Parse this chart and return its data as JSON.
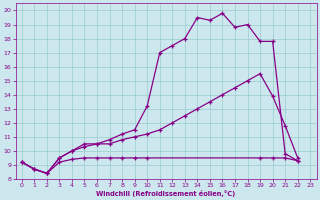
{
  "bg_color": "#cce8ee",
  "line_color": "#880088",
  "grid_color": "#99cccc",
  "xlabel": "Windchill (Refroidissement éolien,°C)",
  "xlim": [
    -0.5,
    23.5
  ],
  "ylim": [
    8,
    20.5
  ],
  "xticks": [
    0,
    1,
    2,
    3,
    4,
    5,
    6,
    7,
    8,
    9,
    10,
    11,
    12,
    13,
    14,
    15,
    16,
    17,
    18,
    19,
    20,
    21,
    22,
    23
  ],
  "yticks": [
    8,
    9,
    10,
    11,
    12,
    13,
    14,
    15,
    16,
    17,
    18,
    19,
    20
  ],
  "line1_x": [
    0,
    1,
    2,
    3,
    4,
    5,
    6,
    7,
    8,
    9,
    10,
    11,
    12,
    13,
    14,
    15,
    16,
    17,
    18,
    19,
    20,
    21,
    22
  ],
  "line1_y": [
    9.2,
    8.7,
    8.4,
    9.5,
    10.0,
    10.5,
    10.5,
    10.8,
    11.2,
    11.5,
    13.2,
    17.0,
    17.5,
    18.0,
    19.5,
    19.3,
    19.8,
    18.8,
    19.0,
    17.8,
    17.8,
    9.8,
    9.3
  ],
  "line2_x": [
    0,
    1,
    2,
    3,
    4,
    5,
    6,
    7,
    8,
    9,
    10,
    11,
    12,
    13,
    14,
    15,
    16,
    17,
    18,
    19,
    20,
    21,
    22
  ],
  "line2_y": [
    9.2,
    8.7,
    8.4,
    9.5,
    10.0,
    10.3,
    10.5,
    10.5,
    10.8,
    11.0,
    11.2,
    11.5,
    12.0,
    12.5,
    13.0,
    13.5,
    14.0,
    14.5,
    15.0,
    15.5,
    13.9,
    11.8,
    9.5
  ],
  "line3_x": [
    0,
    1,
    2,
    3,
    4,
    5,
    6,
    7,
    8,
    9,
    10,
    19,
    20,
    21,
    22
  ],
  "line3_y": [
    9.2,
    8.7,
    8.4,
    9.2,
    9.4,
    9.5,
    9.5,
    9.5,
    9.5,
    9.5,
    9.5,
    9.5,
    9.5,
    9.5,
    9.3
  ]
}
